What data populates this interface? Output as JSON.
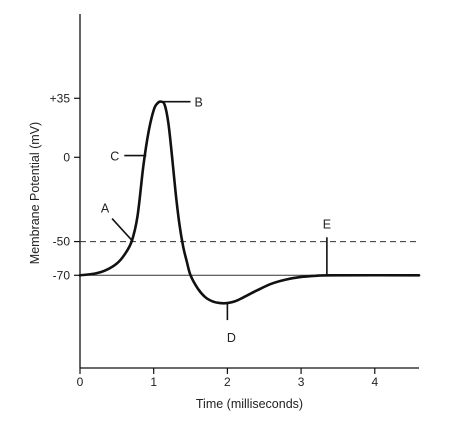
{
  "chart_data": {
    "type": "line",
    "title": "",
    "xlabel": "Time (milliseconds)",
    "ylabel": "Membrane Potential (mV)",
    "xlim": [
      0,
      4.6
    ],
    "ylim": [
      -125,
      85
    ],
    "x_ticks": [
      {
        "value": 0,
        "label": "0"
      },
      {
        "value": 1,
        "label": "1"
      },
      {
        "value": 2,
        "label": "2"
      },
      {
        "value": 3,
        "label": "3"
      },
      {
        "value": 4,
        "label": "4"
      }
    ],
    "y_ticks": [
      {
        "value": 35,
        "label": "+35"
      },
      {
        "value": 0,
        "label": "0"
      },
      {
        "value": -50,
        "label": "-50"
      },
      {
        "value": -70,
        "label": "-70"
      }
    ],
    "grid": false,
    "series": [
      {
        "x": [
          0,
          0.2,
          0.35,
          0.5,
          0.6,
          0.7,
          0.78,
          0.86,
          0.93,
          1.0,
          1.05,
          1.1,
          1.15,
          1.2,
          1.25,
          1.3,
          1.35,
          1.4,
          1.45,
          1.5,
          1.6,
          1.7,
          1.8,
          1.9,
          2.0,
          2.1,
          2.2,
          2.4,
          2.6,
          2.8,
          3.0,
          3.2,
          3.4,
          4.6
        ],
        "y": [
          -70,
          -69,
          -67,
          -63,
          -58,
          -50,
          -35,
          -5,
          15,
          28,
          32,
          33,
          31,
          20,
          0,
          -22,
          -40,
          -53,
          -62,
          -70,
          -78,
          -83,
          -85.5,
          -86.5,
          -86.5,
          -85.5,
          -83.5,
          -79,
          -75,
          -72.5,
          -71,
          -70.3,
          -70,
          -70
        ]
      }
    ],
    "reference_lines": [
      {
        "y": -50,
        "style": "dashed"
      },
      {
        "y": -70,
        "style": "solid"
      }
    ],
    "annotations": [
      {
        "label": "A",
        "x": 0.72,
        "y": -50
      },
      {
        "label": "B",
        "x": 1.12,
        "y": 33
      },
      {
        "label": "C",
        "x": 0.9,
        "y": 1
      },
      {
        "label": "D",
        "x": 2.0,
        "y": -86.5
      },
      {
        "label": "E",
        "x": 3.35,
        "y": -70
      }
    ]
  }
}
